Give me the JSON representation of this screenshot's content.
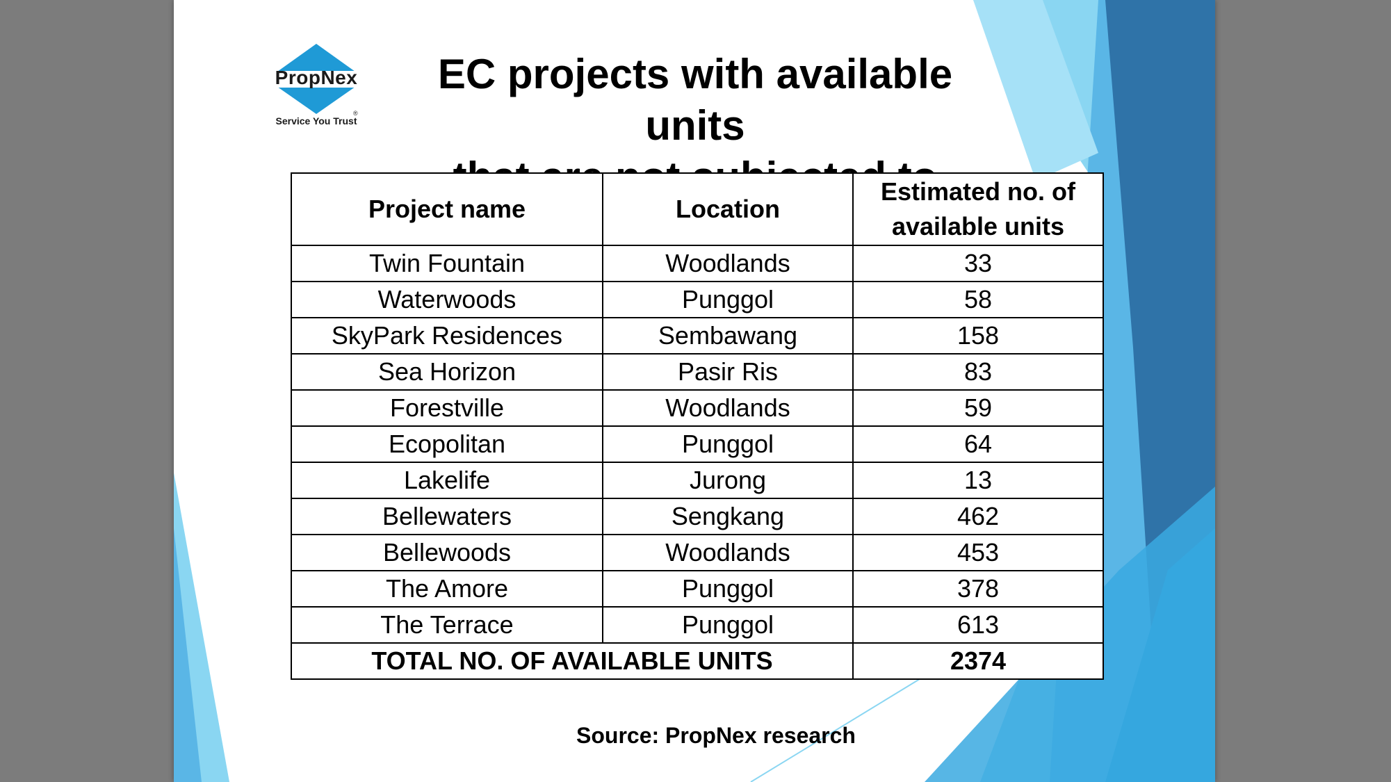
{
  "logo": {
    "brand": "PropNex",
    "tagline": "Service You Trust",
    "registered_mark": "®",
    "color": "#1f9ad6"
  },
  "title": {
    "line1": "EC projects with available units",
    "line2": "that are not subjected to resale"
  },
  "table": {
    "headers": {
      "project": "Project name",
      "location": "Location",
      "units_line1": "Estimated no. of",
      "units_line2": "available units"
    },
    "rows": [
      {
        "project": "Twin Fountain",
        "location": "Woodlands",
        "units": "33"
      },
      {
        "project": "Waterwoods",
        "location": "Punggol",
        "units": "58"
      },
      {
        "project": "SkyPark Residences",
        "location": "Sembawang",
        "units": "158"
      },
      {
        "project": "Sea Horizon",
        "location": "Pasir Ris",
        "units": "83"
      },
      {
        "project": "Forestville",
        "location": "Woodlands",
        "units": "59"
      },
      {
        "project": "Ecopolitan",
        "location": "Punggol",
        "units": "64"
      },
      {
        "project": "Lakelife",
        "location": "Jurong",
        "units": "13"
      },
      {
        "project": "Bellewaters",
        "location": "Sengkang",
        "units": "462"
      },
      {
        "project": "Bellewoods",
        "location": "Woodlands",
        "units": "453"
      },
      {
        "project": "The Amore",
        "location": "Punggol",
        "units": "378"
      },
      {
        "project": "The Terrace",
        "location": "Punggol",
        "units": "613"
      }
    ],
    "total": {
      "label": "TOTAL NO. OF AVAILABLE UNITS",
      "value": "2374"
    }
  },
  "source": "Source: PropNex research",
  "colors": {
    "accent_light": "#7fd0f0",
    "accent_mid": "#3a9fd8",
    "accent_dark": "#2b6ea3",
    "background": "#7c7c7c"
  }
}
